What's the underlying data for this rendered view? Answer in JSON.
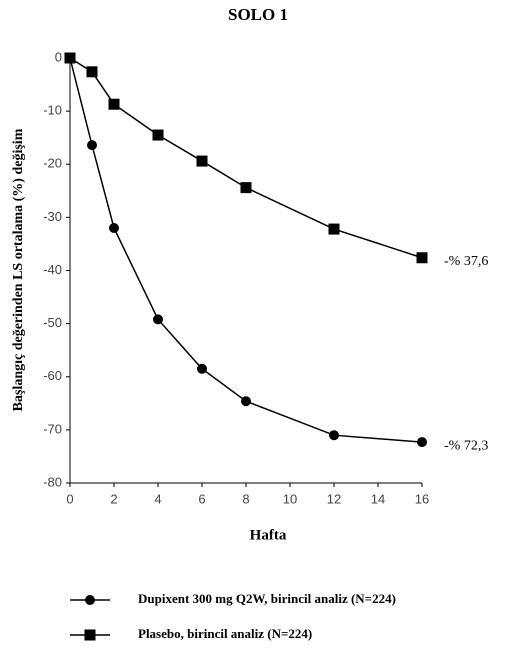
{
  "chart_data": {
    "type": "line",
    "title": "SOLO 1",
    "x_label": "Hafta",
    "y_label": "Başlangıç değerinden LS ortalama (%) değişim",
    "x": [
      0,
      1,
      2,
      4,
      6,
      8,
      12,
      16
    ],
    "series": [
      {
        "name": "Dupixent 300 mg Q2W, birincil analiz (N=224)",
        "color": "#000000",
        "marker": "circle",
        "values": [
          0,
          -16.4,
          -32,
          -49.2,
          -58.5,
          -64.6,
          -71,
          -72.3
        ],
        "value_labels": [
          null,
          null,
          null,
          null,
          null,
          null,
          null,
          "-% 72,3"
        ]
      },
      {
        "name": "Plasebo, birincil analiz (N=224)",
        "color": "#000000",
        "marker": "square",
        "values": [
          0,
          -2.6,
          -8.7,
          -14.5,
          -19.4,
          -24.4,
          -32.2,
          -37.6
        ],
        "value_labels": [
          null,
          null,
          null,
          null,
          null,
          null,
          null,
          "-% 37,6"
        ]
      }
    ],
    "xlim": [
      0,
      16
    ],
    "xticks": [
      0,
      2,
      4,
      6,
      8,
      10,
      12,
      14,
      16
    ],
    "ylim": [
      -80,
      0
    ],
    "yticks": [
      0,
      -10,
      -20,
      -30,
      -40,
      -50,
      -60,
      -70,
      -80
    ],
    "grid": false
  }
}
